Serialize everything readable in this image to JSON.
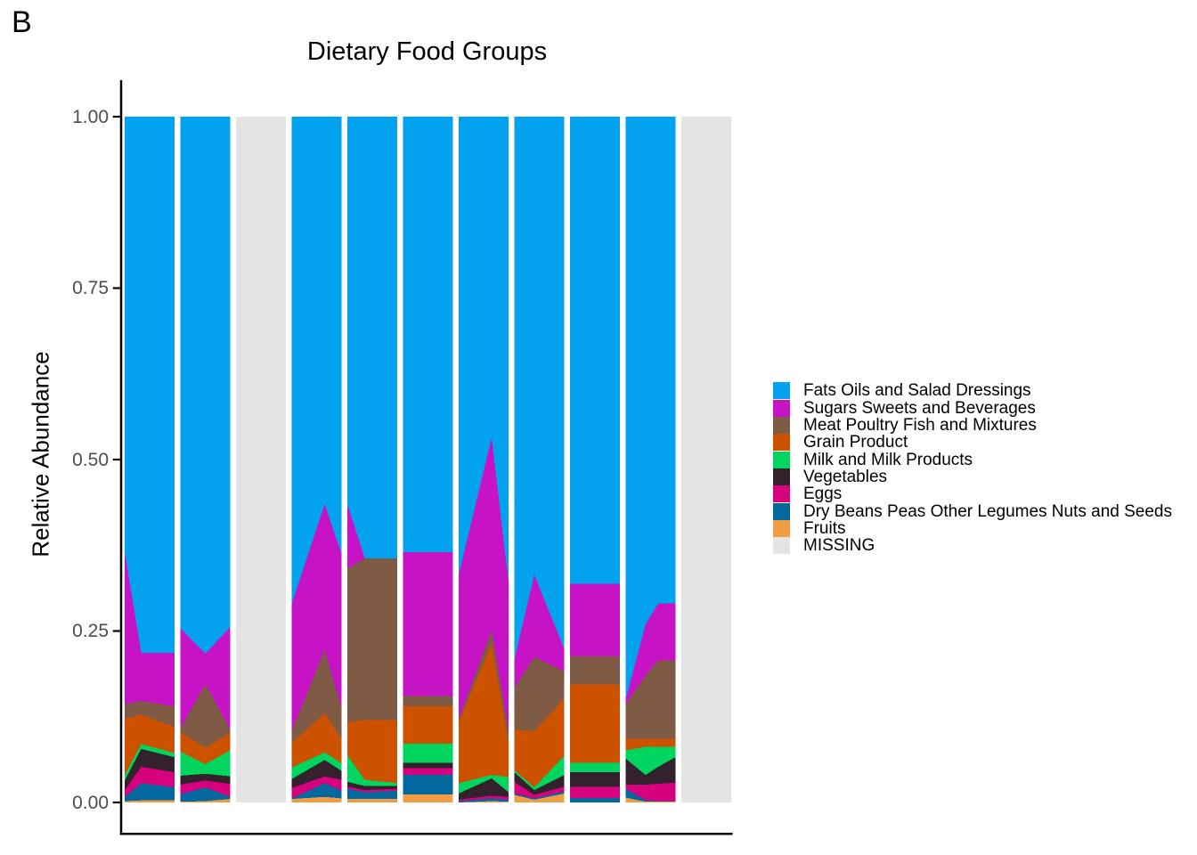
{
  "panel_label": "B",
  "title": "Dietary Food Groups",
  "y_axis": {
    "title": "Relative Abundance",
    "ticks": [
      {
        "label": "1.00",
        "value": 1.0
      },
      {
        "label": "0.75",
        "value": 0.75
      },
      {
        "label": "0.50",
        "value": 0.5
      },
      {
        "label": "0.25",
        "value": 0.25
      },
      {
        "label": "0.00",
        "value": 0.0
      }
    ]
  },
  "colors": {
    "fats": "#02A2EF",
    "sugars": "#C613C6",
    "meat": "#7F5A44",
    "grain": "#CC5200",
    "milk": "#00D55F",
    "vegetables": "#33212B",
    "eggs": "#D6017F",
    "dry_beans": "#03689E",
    "fruits": "#F09C44",
    "missing": "#E4E4E4",
    "axis_text": "#4D4D4D",
    "axis_line": "#000000"
  },
  "legend": {
    "items": [
      {
        "key": "fats",
        "label": "Fats Oils and Salad Dressings"
      },
      {
        "key": "sugars",
        "label": "Sugars Sweets and Beverages"
      },
      {
        "key": "meat",
        "label": "Meat Poultry Fish and Mixtures"
      },
      {
        "key": "grain",
        "label": "Grain Product"
      },
      {
        "key": "milk",
        "label": "Milk and Milk Products"
      },
      {
        "key": "vegetables",
        "label": "Vegetables"
      },
      {
        "key": "eggs",
        "label": "Eggs"
      },
      {
        "key": "dry_beans",
        "label": "Dry Beans Peas Other Legumes Nuts and Seeds"
      },
      {
        "key": "fruits",
        "label": "Fruits"
      },
      {
        "key": "missing",
        "label": "MISSING"
      }
    ]
  },
  "chart_data": {
    "type": "area",
    "title": "Dietary Food Groups",
    "ylabel": "Relative Abundance",
    "ylim": [
      0,
      1
    ],
    "grid": false,
    "legend_position": "right",
    "stack_order_bottom_to_top": [
      "fruits",
      "dry_beans",
      "eggs",
      "vegetables",
      "milk",
      "grain",
      "meat",
      "sugars",
      "fats"
    ],
    "note_values_are_cumulative_tops": true,
    "columns": [
      {
        "id": 1,
        "missing": false,
        "x": [
          0,
          0.33,
          1
        ],
        "cum": {
          "fruits": [
            0.002,
            0.003,
            0.003
          ],
          "dry_beans": [
            0.008,
            0.028,
            0.022
          ],
          "eggs": [
            0.018,
            0.052,
            0.044
          ],
          "vegetables": [
            0.032,
            0.078,
            0.066
          ],
          "milk": [
            0.04,
            0.085,
            0.072
          ],
          "grain": [
            0.122,
            0.128,
            0.11
          ],
          "meat": [
            0.143,
            0.148,
            0.14
          ],
          "sugars": [
            0.365,
            0.218,
            0.218
          ],
          "fats": [
            1,
            1,
            1
          ]
        }
      },
      {
        "id": 2,
        "missing": false,
        "x": [
          0,
          0.5,
          1
        ],
        "cum": {
          "fruits": [
            0.001,
            0.002,
            0.005
          ],
          "dry_beans": [
            0.012,
            0.022,
            0.008
          ],
          "eggs": [
            0.026,
            0.032,
            0.027
          ],
          "vegetables": [
            0.039,
            0.042,
            0.038
          ],
          "milk": [
            0.074,
            0.056,
            0.076
          ],
          "grain": [
            0.102,
            0.08,
            0.102
          ],
          "meat": [
            0.108,
            0.172,
            0.107
          ],
          "sugars": [
            0.254,
            0.217,
            0.256
          ],
          "fats": [
            1,
            1,
            1
          ]
        }
      },
      {
        "id": 3,
        "missing": true
      },
      {
        "id": 4,
        "missing": false,
        "x": [
          0,
          0.66,
          1
        ],
        "cum": {
          "fruits": [
            0.005,
            0.008,
            0.006
          ],
          "dry_beans": [
            0.006,
            0.028,
            0.017
          ],
          "eggs": [
            0.021,
            0.038,
            0.033
          ],
          "vegetables": [
            0.034,
            0.062,
            0.046
          ],
          "milk": [
            0.051,
            0.073,
            0.057
          ],
          "grain": [
            0.087,
            0.13,
            0.093
          ],
          "meat": [
            0.104,
            0.222,
            0.137
          ],
          "sugars": [
            0.289,
            0.435,
            0.362
          ],
          "fats": [
            1,
            1,
            1
          ]
        }
      },
      {
        "id": 5,
        "missing": false,
        "x": [
          0,
          0.35,
          1
        ],
        "cum": {
          "fruits": [
            0.005,
            0.005,
            0.005
          ],
          "dry_beans": [
            0.02,
            0.015,
            0.017
          ],
          "eggs": [
            0.023,
            0.018,
            0.02
          ],
          "vegetables": [
            0.03,
            0.024,
            0.024
          ],
          "milk": [
            0.069,
            0.033,
            0.028
          ],
          "grain": [
            0.117,
            0.12,
            0.12
          ],
          "meat": [
            0.341,
            0.356,
            0.356
          ],
          "sugars": [
            0.435,
            0.356,
            0.356
          ],
          "fats": [
            1,
            1,
            1
          ]
        }
      },
      {
        "id": 6,
        "missing": false,
        "x": [
          0,
          1
        ],
        "cum": {
          "fruits": [
            0.012,
            0.012
          ],
          "dry_beans": [
            0.04,
            0.04
          ],
          "eggs": [
            0.05,
            0.05
          ],
          "vegetables": [
            0.058,
            0.058
          ],
          "milk": [
            0.086,
            0.086
          ],
          "grain": [
            0.14,
            0.14
          ],
          "meat": [
            0.155,
            0.155
          ],
          "sugars": [
            0.365,
            0.365
          ],
          "fats": [
            1,
            1
          ]
        }
      },
      {
        "id": 7,
        "missing": false,
        "x": [
          0,
          0.66,
          1
        ],
        "cum": {
          "fruits": [
            0.0,
            0.002,
            0.001
          ],
          "dry_beans": [
            0.002,
            0.006,
            0.004
          ],
          "eggs": [
            0.004,
            0.01,
            0.008
          ],
          "vegetables": [
            0.013,
            0.035,
            0.015
          ],
          "milk": [
            0.028,
            0.04,
            0.037
          ],
          "grain": [
            0.117,
            0.232,
            0.087
          ],
          "meat": [
            0.121,
            0.251,
            0.104
          ],
          "sugars": [
            0.332,
            0.532,
            0.321
          ],
          "fats": [
            1,
            1,
            1
          ]
        }
      },
      {
        "id": 8,
        "missing": false,
        "x": [
          0,
          0.4,
          1
        ],
        "cum": {
          "fruits": [
            0.011,
            0.004,
            0.013
          ],
          "dry_beans": [
            0.013,
            0.006,
            0.016
          ],
          "eggs": [
            0.03,
            0.011,
            0.023
          ],
          "vegetables": [
            0.044,
            0.018,
            0.04
          ],
          "milk": [
            0.047,
            0.022,
            0.068
          ],
          "grain": [
            0.106,
            0.104,
            0.152
          ],
          "meat": [
            0.167,
            0.212,
            0.191
          ],
          "sugars": [
            0.208,
            0.332,
            0.224
          ],
          "fats": [
            1,
            1,
            1
          ]
        }
      },
      {
        "id": 9,
        "missing": false,
        "x": [
          0,
          1
        ],
        "cum": {
          "fruits": [
            0.0,
            0.0
          ],
          "dry_beans": [
            0.0065,
            0.0065
          ],
          "eggs": [
            0.023,
            0.023
          ],
          "vegetables": [
            0.044,
            0.044
          ],
          "milk": [
            0.058,
            0.058
          ],
          "grain": [
            0.172,
            0.172
          ],
          "meat": [
            0.213,
            0.213
          ],
          "sugars": [
            0.319,
            0.319
          ],
          "fats": [
            1,
            1
          ]
        }
      },
      {
        "id": 10,
        "missing": false,
        "x": [
          0,
          0.4,
          0.65,
          1
        ],
        "cum": {
          "fruits": [
            0.007,
            0.001,
            0.001,
            0.001
          ],
          "dry_beans": [
            0.02,
            0.003,
            0.002,
            0.002
          ],
          "eggs": [
            0.026,
            0.026,
            0.027,
            0.029
          ],
          "vegetables": [
            0.064,
            0.04,
            0.052,
            0.066
          ],
          "milk": [
            0.076,
            0.081,
            0.081,
            0.081
          ],
          "grain": [
            0.093,
            0.093,
            0.093,
            0.093
          ],
          "meat": [
            0.143,
            0.185,
            0.207,
            0.207
          ],
          "sugars": [
            0.15,
            0.26,
            0.29,
            0.29
          ],
          "fats": [
            1,
            1,
            1,
            1
          ]
        }
      },
      {
        "id": 11,
        "missing": true
      }
    ]
  }
}
